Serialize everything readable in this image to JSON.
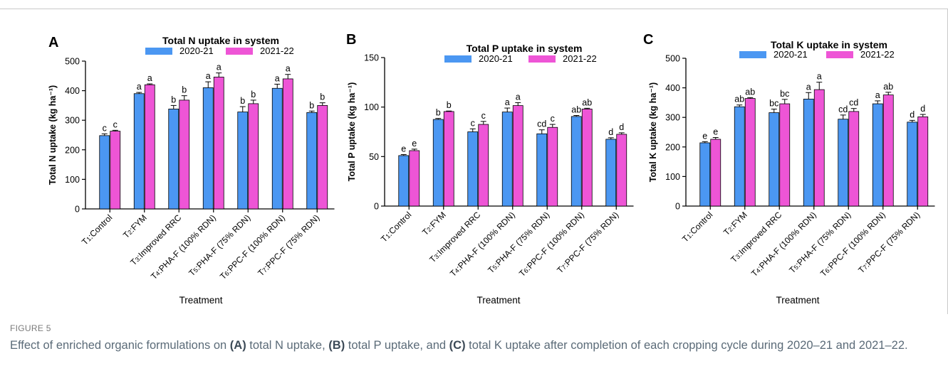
{
  "figure_label": "FIGURE 5",
  "caption": {
    "p0": "Effect of enriched organic formulations on ",
    "a": "(A)",
    "p1": " total N uptake, ",
    "b": "(B)",
    "p2": " total P uptake, and ",
    "c": "(C)",
    "p3": " total K uptake after completion of each cropping cycle during 2020–21 and 2021–22."
  },
  "colors": {
    "series1": "#4b97f2",
    "series2": "#ee55d6"
  },
  "chart_data": [
    {
      "type": "bar",
      "panel": "A",
      "title": "Total N uptake in system",
      "xlabel": "Treatment",
      "ylabel": "Total N uptake (kg ha⁻¹)",
      "ylim": [
        0,
        500
      ],
      "yticks": [
        0,
        100,
        200,
        300,
        400,
        500
      ],
      "categories": [
        "T₁:Control",
        "T₂:FYM",
        "T₃:Improved RRC",
        "T₄:PHA-F (100% RDN)",
        "T₅:PHA-F (75% RDN)",
        "T₆:PPC-F (100% RDN)",
        "T₇:PPC-F (75% RDN)"
      ],
      "legend_position": "top",
      "series": [
        {
          "name": "2020-21",
          "values": [
            248,
            390,
            338,
            410,
            328,
            408,
            326
          ],
          "errors": [
            6,
            4,
            12,
            20,
            18,
            14,
            5
          ],
          "letters": [
            "c",
            "a",
            "b",
            "a",
            "b",
            "a",
            "b"
          ]
        },
        {
          "name": "2021-22",
          "values": [
            263,
            420,
            368,
            446,
            356,
            440,
            350
          ],
          "errors": [
            3,
            3,
            15,
            14,
            12,
            15,
            9
          ],
          "letters": [
            "c",
            "a",
            "b",
            "a",
            "b",
            "a",
            "b"
          ]
        }
      ]
    },
    {
      "type": "bar",
      "panel": "B",
      "title": "Total P uptake in system",
      "xlabel": "Treatment",
      "ylabel": "Total P uptake (kg ha⁻¹)",
      "ylim": [
        0,
        150
      ],
      "yticks": [
        0,
        50,
        100,
        150
      ],
      "categories": [
        "T₁:Control",
        "T₂:FYM",
        "T₃:Improved RRC",
        "T₄:PHA-F (100% RDN)",
        "T₅:PHA-F (75% RDN)",
        "T₆:PPC-F (100% RDN)",
        "T₇:PPC-F (75% RDN)"
      ],
      "legend_position": "top",
      "series": [
        {
          "name": "2020-21",
          "values": [
            51,
            87.5,
            75,
            95,
            73,
            90.5,
            67.5
          ],
          "errors": [
            1,
            1,
            3,
            4,
            4,
            1,
            1.5
          ],
          "letters": [
            "e",
            "b",
            "c",
            "a",
            "cd",
            "ab",
            "d"
          ]
        },
        {
          "name": "2021-22",
          "values": [
            56,
            95.5,
            82.5,
            101.5,
            79.5,
            98,
            72.5
          ],
          "errors": [
            1.5,
            0.5,
            3,
            3,
            3,
            0.8,
            1.5
          ],
          "letters": [
            "e",
            "b",
            "c",
            "a",
            "c",
            "ab",
            "d"
          ]
        }
      ]
    },
    {
      "type": "bar",
      "panel": "C",
      "title": "Total K uptake in system",
      "xlabel": "Treatment",
      "ylabel": "Total K uptake (kg ha⁻¹)",
      "ylim": [
        0,
        500
      ],
      "yticks": [
        0,
        100,
        200,
        300,
        400,
        500
      ],
      "categories": [
        "T₁:Control",
        "T₂:FYM",
        "T₃:Improved RRC",
        "T₄:PHA-F (100% RDN)",
        "T₅:PHA-F (75% RDN)",
        "T₆:PPC-F (100% RDN)",
        "T₇:PPC-F (75% RDN)"
      ],
      "legend_position": "top",
      "series": [
        {
          "name": "2020-21",
          "values": [
            214,
            336,
            316,
            362,
            294,
            346,
            284
          ],
          "errors": [
            4,
            6,
            12,
            22,
            14,
            10,
            6
          ],
          "letters": [
            "e",
            "ab",
            "bc",
            "a",
            "cd",
            "a",
            "d"
          ]
        },
        {
          "name": "2021-22",
          "values": [
            226,
            364,
            346,
            394,
            320,
            376,
            302
          ],
          "errors": [
            6,
            3,
            15,
            25,
            10,
            9,
            8
          ],
          "letters": [
            "e",
            "ab",
            "bc",
            "a",
            "cd",
            "ab",
            "d"
          ]
        }
      ]
    }
  ]
}
